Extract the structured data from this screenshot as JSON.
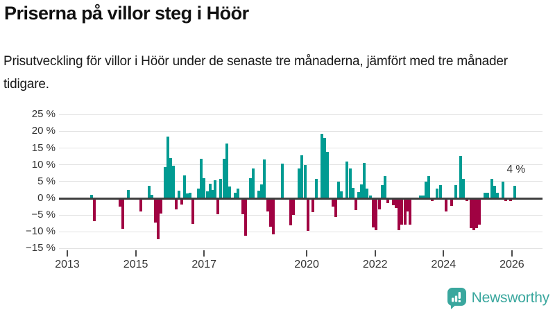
{
  "header": {
    "title": "Priserna på villor steg i Höör",
    "subtitle": "Prisutveckling för villor i Höör under de senaste tre månaderna, jämfört med tre månader tidigare."
  },
  "chart_data": {
    "type": "bar",
    "title": "Priserna på villor steg i Höör",
    "subtitle": "Prisutveckling för villor i Höör under de senaste tre månaderna, jämfört med tre månader tidigare.",
    "unit": "%",
    "xlabel": "",
    "ylabel": "",
    "ylim": [
      -15,
      25
    ],
    "xlim": [
      2012.75,
      2026.6
    ],
    "grid": "horizontal",
    "legend": "none",
    "y_ticks": [
      {
        "label": "25 %",
        "value": 25
      },
      {
        "label": "20 %",
        "value": 20
      },
      {
        "label": "15 %",
        "value": 15
      },
      {
        "label": "10 %",
        "value": 10
      },
      {
        "label": "5 %",
        "value": 5
      },
      {
        "label": "0 %",
        "value": 0
      },
      {
        "label": "−5 %",
        "value": -5
      },
      {
        "label": "−10 %",
        "value": -10
      },
      {
        "label": "−15 %",
        "value": -15
      }
    ],
    "x_ticks": [
      {
        "label": "2013",
        "value": 2013
      },
      {
        "label": "2015",
        "value": 2015
      },
      {
        "label": "2017",
        "value": 2017
      },
      {
        "label": "2020",
        "value": 2020
      },
      {
        "label": "2022",
        "value": 2022
      },
      {
        "label": "2024",
        "value": 2024
      },
      {
        "label": "2026",
        "value": 2026
      }
    ],
    "annotation": {
      "label": "4 %",
      "attached_to_last_point": true
    },
    "colors": {
      "positive": "#009b92",
      "negative": "#a00242",
      "grid": "#e2e2e2",
      "axis": "#3f3f3f",
      "text": "#333333"
    },
    "points": [
      [
        2013.7,
        1.0
      ],
      [
        2013.8,
        -6.8
      ],
      [
        2014.55,
        -2.5
      ],
      [
        2014.63,
        -9.2
      ],
      [
        2014.79,
        2.5
      ],
      [
        2015.15,
        -3.9
      ],
      [
        2015.39,
        3.7
      ],
      [
        2015.47,
        1.1
      ],
      [
        2015.57,
        -7.3
      ],
      [
        2015.65,
        -12.3
      ],
      [
        2015.73,
        -4.5
      ],
      [
        2015.86,
        9.4
      ],
      [
        2015.94,
        18.5
      ],
      [
        2016.02,
        12.0
      ],
      [
        2016.1,
        9.7
      ],
      [
        2016.18,
        -3.3
      ],
      [
        2016.26,
        2.3
      ],
      [
        2016.34,
        -1.8
      ],
      [
        2016.43,
        6.8
      ],
      [
        2016.51,
        1.4
      ],
      [
        2016.59,
        1.7
      ],
      [
        2016.67,
        -7.7
      ],
      [
        2016.84,
        2.8
      ],
      [
        2016.92,
        11.7
      ],
      [
        2017.0,
        6.1
      ],
      [
        2017.09,
        2.1
      ],
      [
        2017.17,
        4.3
      ],
      [
        2017.25,
        2.5
      ],
      [
        2017.33,
        5.4
      ],
      [
        2017.41,
        -4.8
      ],
      [
        2017.49,
        5.7
      ],
      [
        2017.58,
        11.7
      ],
      [
        2017.66,
        16.3
      ],
      [
        2017.74,
        3.6
      ],
      [
        2017.91,
        1.6
      ],
      [
        2017.99,
        3.0
      ],
      [
        2018.13,
        -4.7
      ],
      [
        2018.22,
        -11.1
      ],
      [
        2018.35,
        6.0
      ],
      [
        2018.44,
        9.0
      ],
      [
        2018.6,
        2.3
      ],
      [
        2018.68,
        4.2
      ],
      [
        2018.77,
        11.5
      ],
      [
        2018.86,
        -3.9
      ],
      [
        2018.94,
        -8.5
      ],
      [
        2019.03,
        -10.8
      ],
      [
        2019.28,
        10.4
      ],
      [
        2019.53,
        -8.1
      ],
      [
        2019.61,
        -4.9
      ],
      [
        2019.78,
        9.0
      ],
      [
        2019.86,
        12.9
      ],
      [
        2019.95,
        9.9
      ],
      [
        2020.03,
        -9.8
      ],
      [
        2020.19,
        -4.1
      ],
      [
        2020.28,
        5.9
      ],
      [
        2020.44,
        19.2
      ],
      [
        2020.53,
        18.1
      ],
      [
        2020.61,
        13.9
      ],
      [
        2020.76,
        -2.5
      ],
      [
        2020.84,
        -5.6
      ],
      [
        2020.93,
        5.0
      ],
      [
        2021.01,
        2.1
      ],
      [
        2021.18,
        10.9
      ],
      [
        2021.27,
        8.9
      ],
      [
        2021.35,
        3.2
      ],
      [
        2021.44,
        -3.6
      ],
      [
        2021.52,
        1.9
      ],
      [
        2021.6,
        4.2
      ],
      [
        2021.69,
        10.5
      ],
      [
        2021.77,
        3.0
      ],
      [
        2021.86,
        0.9
      ],
      [
        2021.95,
        -8.7
      ],
      [
        2022.03,
        -9.6
      ],
      [
        2022.12,
        -3.3
      ],
      [
        2022.2,
        3.9
      ],
      [
        2022.28,
        6.7
      ],
      [
        2022.37,
        -1.5
      ],
      [
        2022.53,
        -2.0
      ],
      [
        2022.62,
        -2.9
      ],
      [
        2022.7,
        -9.6
      ],
      [
        2022.78,
        -7.8
      ],
      [
        2022.87,
        -7.9
      ],
      [
        2022.95,
        -3.9
      ],
      [
        2023.03,
        -7.9
      ],
      [
        2023.32,
        0.9
      ],
      [
        2023.4,
        0.9
      ],
      [
        2023.49,
        4.9
      ],
      [
        2023.57,
        6.7
      ],
      [
        2023.66,
        -0.8
      ],
      [
        2023.82,
        3.0
      ],
      [
        2023.91,
        4.0
      ],
      [
        2024.07,
        -3.9
      ],
      [
        2024.24,
        -2.3
      ],
      [
        2024.35,
        4.0
      ],
      [
        2024.51,
        12.7
      ],
      [
        2024.59,
        5.9
      ],
      [
        2024.68,
        -0.8
      ],
      [
        2024.8,
        -8.9
      ],
      [
        2024.88,
        -9.6
      ],
      [
        2024.96,
        -8.9
      ],
      [
        2025.04,
        -7.9
      ],
      [
        2025.21,
        1.7
      ],
      [
        2025.29,
        1.7
      ],
      [
        2025.41,
        5.9
      ],
      [
        2025.49,
        3.7
      ],
      [
        2025.57,
        1.7
      ],
      [
        2025.74,
        5.0
      ],
      [
        2025.82,
        -0.8
      ],
      [
        2025.96,
        -0.8
      ],
      [
        2026.08,
        3.7
      ]
    ]
  },
  "footer": {
    "brand": "Newsworthy",
    "brand_color": "#3aa79e"
  }
}
